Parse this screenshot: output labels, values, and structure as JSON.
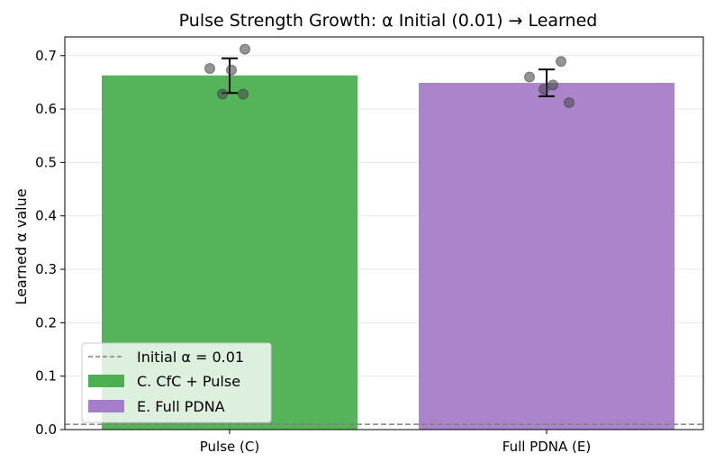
{
  "chart_data": {
    "type": "bar",
    "title": "Pulse Strength Growth: α Initial (0.01) → Learned",
    "xlabel": "",
    "ylabel": "Learned α value",
    "ylim": [
      0,
      0.735
    ],
    "yticks": [
      0.0,
      0.1,
      0.2,
      0.3,
      0.4,
      0.5,
      0.6,
      0.7
    ],
    "ytick_labels": [
      "0.0",
      "0.1",
      "0.2",
      "0.3",
      "0.4",
      "0.5",
      "0.6",
      "0.7"
    ],
    "grid": "y",
    "categories": [
      "Pulse (C)",
      "Full PDNA (E)"
    ],
    "series": [
      {
        "name": "C. CfC + Pulse",
        "color": "#4caf50",
        "category_index": 0,
        "value": 0.663,
        "error_low": 0.63,
        "error_high": 0.695,
        "points": [
          {
            "dx": -0.22,
            "y": 0.676
          },
          {
            "dx": 0.17,
            "y": 0.712
          },
          {
            "dx": -0.08,
            "y": 0.628
          },
          {
            "dx": 0.02,
            "y": 0.673
          },
          {
            "dx": 0.15,
            "y": 0.628
          }
        ]
      },
      {
        "name": "E. Full PDNA",
        "color": "#a57ec9",
        "category_index": 1,
        "value": 0.649,
        "error_low": 0.624,
        "error_high": 0.674,
        "points": [
          {
            "dx": -0.03,
            "y": 0.637
          },
          {
            "dx": 0.16,
            "y": 0.689
          },
          {
            "dx": -0.19,
            "y": 0.66
          },
          {
            "dx": 0.07,
            "y": 0.645
          },
          {
            "dx": 0.25,
            "y": 0.612
          }
        ]
      }
    ],
    "reference_line": {
      "label": "Initial α = 0.01",
      "value": 0.01,
      "style": "dashed",
      "color": "#808080"
    },
    "legend": {
      "placement": "lower-left",
      "entries": [
        "Initial α = 0.01",
        "C. CfC + Pulse",
        "E. Full PDNA"
      ]
    }
  }
}
